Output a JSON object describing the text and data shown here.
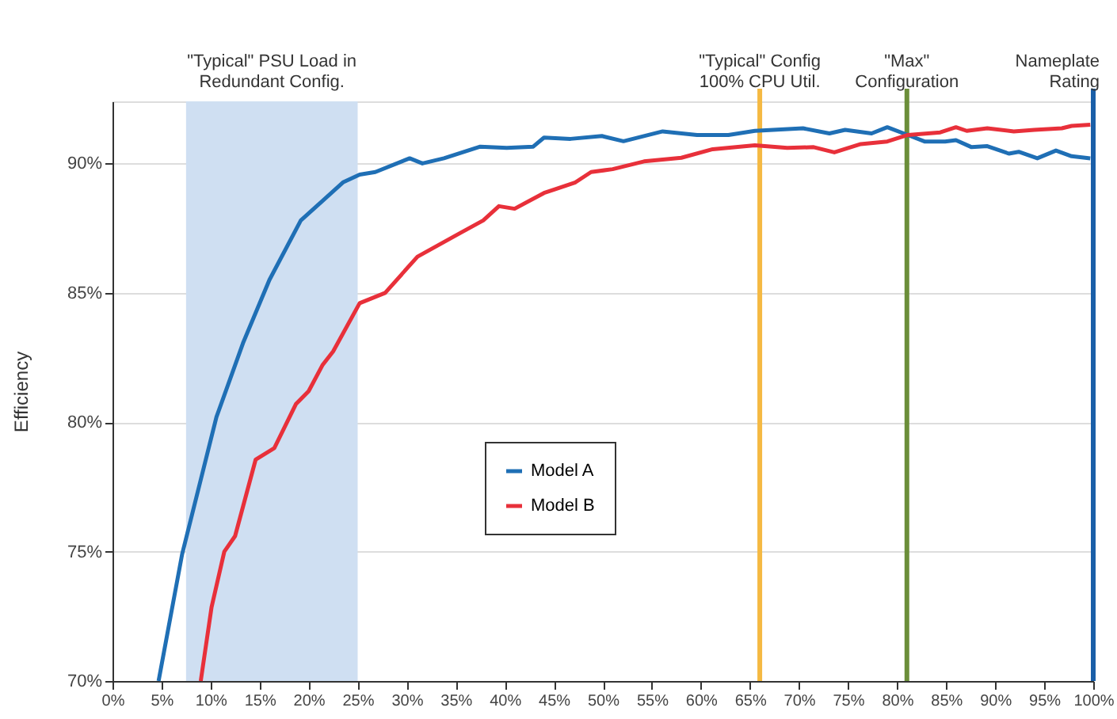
{
  "chart_data": {
    "type": "line",
    "ylabel": "Efficiency",
    "xlim": [
      0,
      100
    ],
    "ylim": [
      70,
      92.4
    ],
    "xticks": [
      {
        "value": 0,
        "label": "0%"
      },
      {
        "value": 5,
        "label": "5%"
      },
      {
        "value": 10,
        "label": "10%"
      },
      {
        "value": 15,
        "label": "15%"
      },
      {
        "value": 20,
        "label": "20%"
      },
      {
        "value": 25,
        "label": "25%"
      },
      {
        "value": 30,
        "label": "30%"
      },
      {
        "value": 35,
        "label": "35%"
      },
      {
        "value": 40,
        "label": "40%"
      },
      {
        "value": 45,
        "label": "45%"
      },
      {
        "value": 50,
        "label": "50%"
      },
      {
        "value": 55,
        "label": "55%"
      },
      {
        "value": 60,
        "label": "60%"
      },
      {
        "value": 65,
        "label": "65%"
      },
      {
        "value": 70,
        "label": "70%"
      },
      {
        "value": 75,
        "label": "75%"
      },
      {
        "value": 80,
        "label": "80%"
      },
      {
        "value": 85,
        "label": "85%"
      },
      {
        "value": 90,
        "label": "90%"
      },
      {
        "value": 95,
        "label": "95%"
      },
      {
        "value": 100,
        "label": "100%"
      }
    ],
    "yticks": [
      {
        "value": 70,
        "label": "70%"
      },
      {
        "value": 75,
        "label": "75%"
      },
      {
        "value": 80,
        "label": "80%"
      },
      {
        "value": 85,
        "label": "85%"
      },
      {
        "value": 90,
        "label": "90%"
      }
    ],
    "grid": "y",
    "legend": "bottom left",
    "line_style": "solid",
    "marker": "none",
    "series": [
      {
        "name": "Model A",
        "color": "#1f6fb5",
        "x": [
          4.7,
          7.1,
          10.6,
          13.3,
          16.0,
          19.2,
          21.4,
          23.5,
          25.2,
          26.8,
          30.3,
          31.6,
          33.8,
          37.5,
          40.2,
          42.9,
          44.0,
          46.7,
          49.9,
          52.1,
          56.1,
          59.6,
          62.8,
          65.5,
          70.4,
          73.1,
          74.7,
          77.4,
          79.0,
          81.1,
          82.8,
          84.9,
          86.0,
          87.6,
          89.2,
          91.4,
          92.4,
          94.3,
          96.2,
          97.8,
          99.7
        ],
        "values": [
          70,
          74.9,
          80.2,
          83.05,
          85.5,
          87.8,
          88.55,
          89.27,
          89.57,
          89.67,
          90.2,
          90.0,
          90.2,
          90.65,
          90.6,
          90.65,
          91.0,
          90.95,
          91.06,
          90.86,
          91.24,
          91.1,
          91.1,
          91.26,
          91.36,
          91.16,
          91.3,
          91.16,
          91.4,
          91.1,
          90.85,
          90.85,
          90.9,
          90.63,
          90.67,
          90.38,
          90.45,
          90.2,
          90.5,
          90.28,
          90.2
        ]
      },
      {
        "name": "Model B",
        "color": "#e8303a",
        "x": [
          9.0,
          10.1,
          11.4,
          12.5,
          14.6,
          16.5,
          18.7,
          20.0,
          21.4,
          22.5,
          25.2,
          27.8,
          31.1,
          35.4,
          37.8,
          39.4,
          41.0,
          44.0,
          45.1,
          47.2,
          48.8,
          51.0,
          54.2,
          58.0,
          61.2,
          65.5,
          68.8,
          71.5,
          73.6,
          76.3,
          79.0,
          81.1,
          84.4,
          86.0,
          87.1,
          89.2,
          91.9,
          94.0,
          96.8,
          97.8,
          99.7
        ],
        "values": [
          70,
          72.85,
          75.0,
          75.6,
          78.56,
          79.0,
          80.7,
          81.2,
          82.2,
          82.74,
          84.6,
          85.0,
          86.4,
          87.3,
          87.8,
          88.35,
          88.25,
          88.86,
          89.0,
          89.27,
          89.67,
          89.78,
          90.08,
          90.22,
          90.55,
          90.7,
          90.6,
          90.63,
          90.43,
          90.75,
          90.85,
          91.1,
          91.2,
          91.4,
          91.26,
          91.36,
          91.24,
          91.3,
          91.36,
          91.45,
          91.5
        ]
      }
    ],
    "bands": [
      {
        "axis": "x",
        "from": 7.5,
        "to": 25,
        "label": "\"Typical\" PSU Load in\nRedundant Config.",
        "color": "#cfdff2"
      }
    ],
    "ref_lines": [
      {
        "axis": "x",
        "value": 66,
        "label": "\"Typical\"  Config\n100% CPU Util.",
        "color": "#f5b942"
      },
      {
        "axis": "x",
        "value": 81,
        "label": "\"Max\"\nConfiguration",
        "color": "#6b8e3a"
      },
      {
        "axis": "x",
        "value": 100,
        "label": "Nameplate\nRating",
        "color": "#1a5fa8"
      }
    ]
  }
}
